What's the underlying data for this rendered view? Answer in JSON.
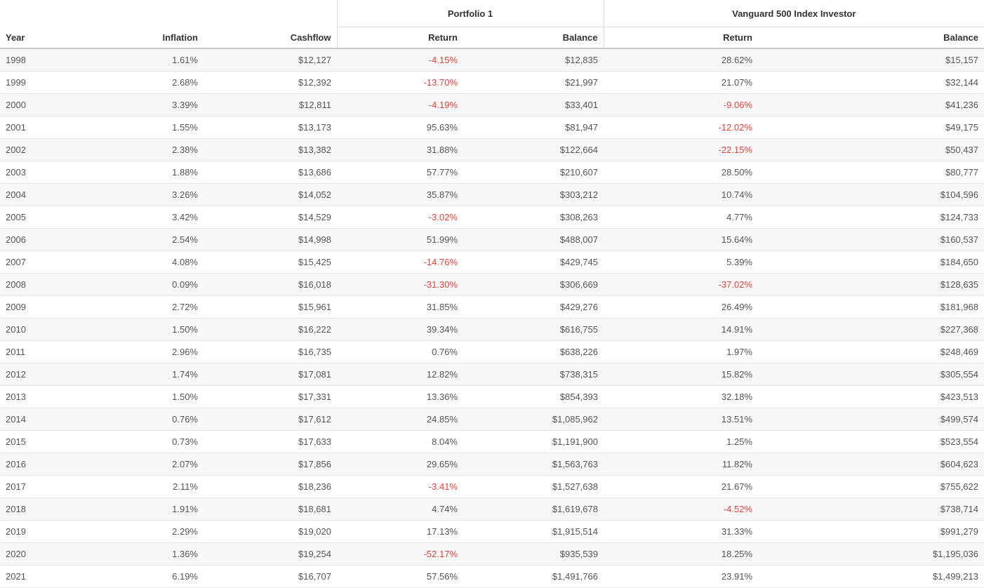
{
  "table": {
    "groups": [
      {
        "label": "Portfolio 1"
      },
      {
        "label": "Vanguard 500 Index Investor"
      }
    ],
    "columns": [
      "Year",
      "Inflation",
      "Cashflow",
      "Return",
      "Balance",
      "Return",
      "Balance"
    ],
    "rows": [
      [
        "1998",
        "1.61%",
        "$12,127",
        "-4.15%",
        "$12,835",
        "28.62%",
        "$15,157"
      ],
      [
        "1999",
        "2.68%",
        "$12,392",
        "-13.70%",
        "$21,997",
        "21.07%",
        "$32,144"
      ],
      [
        "2000",
        "3.39%",
        "$12,811",
        "-4.19%",
        "$33,401",
        "-9.06%",
        "$41,236"
      ],
      [
        "2001",
        "1.55%",
        "$13,173",
        "95.63%",
        "$81,947",
        "-12.02%",
        "$49,175"
      ],
      [
        "2002",
        "2.38%",
        "$13,382",
        "31.88%",
        "$122,664",
        "-22.15%",
        "$50,437"
      ],
      [
        "2003",
        "1.88%",
        "$13,686",
        "57.77%",
        "$210,607",
        "28.50%",
        "$80,777"
      ],
      [
        "2004",
        "3.26%",
        "$14,052",
        "35.87%",
        "$303,212",
        "10.74%",
        "$104,596"
      ],
      [
        "2005",
        "3.42%",
        "$14,529",
        "-3.02%",
        "$308,263",
        "4.77%",
        "$124,733"
      ],
      [
        "2006",
        "2.54%",
        "$14,998",
        "51.99%",
        "$488,007",
        "15.64%",
        "$160,537"
      ],
      [
        "2007",
        "4.08%",
        "$15,425",
        "-14.76%",
        "$429,745",
        "5.39%",
        "$184,650"
      ],
      [
        "2008",
        "0.09%",
        "$16,018",
        "-31.30%",
        "$306,669",
        "-37.02%",
        "$128,635"
      ],
      [
        "2009",
        "2.72%",
        "$15,961",
        "31.85%",
        "$429,276",
        "26.49%",
        "$181,968"
      ],
      [
        "2010",
        "1.50%",
        "$16,222",
        "39.34%",
        "$616,755",
        "14.91%",
        "$227,368"
      ],
      [
        "2011",
        "2.96%",
        "$16,735",
        "0.76%",
        "$638,226",
        "1.97%",
        "$248,469"
      ],
      [
        "2012",
        "1.74%",
        "$17,081",
        "12.82%",
        "$738,315",
        "15.82%",
        "$305,554"
      ],
      [
        "2013",
        "1.50%",
        "$17,331",
        "13.36%",
        "$854,393",
        "32.18%",
        "$423,513"
      ],
      [
        "2014",
        "0.76%",
        "$17,612",
        "24.85%",
        "$1,085,962",
        "13.51%",
        "$499,574"
      ],
      [
        "2015",
        "0.73%",
        "$17,633",
        "8.04%",
        "$1,191,900",
        "1.25%",
        "$523,554"
      ],
      [
        "2016",
        "2.07%",
        "$17,856",
        "29.65%",
        "$1,563,763",
        "11.82%",
        "$604,623"
      ],
      [
        "2017",
        "2.11%",
        "$18,236",
        "-3.41%",
        "$1,527,638",
        "21.67%",
        "$755,622"
      ],
      [
        "2018",
        "1.91%",
        "$18,681",
        "4.74%",
        "$1,619,678",
        "-4.52%",
        "$738,714"
      ],
      [
        "2019",
        "2.29%",
        "$19,020",
        "17.13%",
        "$1,915,514",
        "31.33%",
        "$991,279"
      ],
      [
        "2020",
        "1.36%",
        "$19,254",
        "-52.17%",
        "$935,539",
        "18.25%",
        "$1,195,036"
      ],
      [
        "2021",
        "6.19%",
        "$16,707",
        "57.56%",
        "$1,491,766",
        "23.91%",
        "$1,499,213"
      ]
    ]
  },
  "colors": {
    "negative_return": "#d9433c",
    "header_text": "#333333",
    "body_text": "#555555",
    "stripe_background": "#f8f8f8",
    "header_border": "#c8c8c8",
    "row_border": "#e8e8e8"
  }
}
